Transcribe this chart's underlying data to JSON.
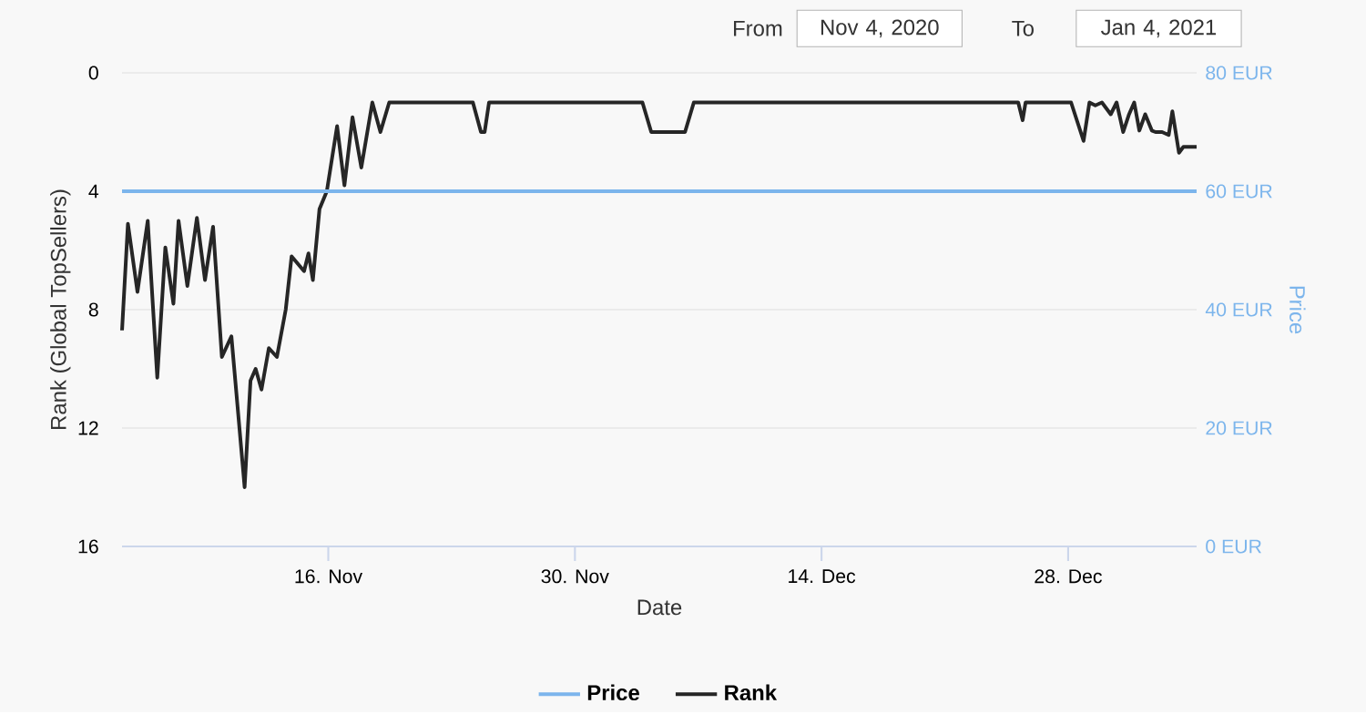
{
  "chart_data": {
    "type": "line",
    "xlabel": "Date",
    "ylabel": "Rank (Global TopSellers)",
    "y2label": "Price",
    "annotations": [
      "From",
      "Nov 4, 2020",
      "To",
      "Jan 4, 2021"
    ],
    "xlim": [
      "2020-11-04T07:00",
      "2021-01-04T07:00"
    ],
    "xticks": [
      {
        "value": "2020-11-16",
        "label": "16. Nov"
      },
      {
        "value": "2020-11-30",
        "label": "30. Nov"
      },
      {
        "value": "2020-12-14",
        "label": "14. Dec"
      },
      {
        "value": "2020-12-28",
        "label": "28. Dec"
      }
    ],
    "ylim": [
      16,
      0
    ],
    "yticks": [
      0,
      4,
      8,
      12,
      16
    ],
    "y2lim": [
      0,
      80
    ],
    "y2ticks": [
      {
        "value": 0,
        "label": "0 EUR"
      },
      {
        "value": 20,
        "label": "20 EUR"
      },
      {
        "value": 40,
        "label": "40 EUR"
      },
      {
        "value": 60,
        "label": "60 EUR"
      },
      {
        "value": 80,
        "label": "80 EUR"
      }
    ],
    "grid": "y",
    "legend": "bottom",
    "line_style": "solid",
    "series": [
      {
        "name": "Price",
        "color": "#7cb5ec",
        "axis": "y2",
        "x": [
          "2020-11-04T07:00",
          "2021-01-04T07:00"
        ],
        "values": [
          60,
          60
        ]
      },
      {
        "name": "Rank",
        "color": "#262626",
        "axis": "y",
        "x": [
          "2020-11-04T07:00",
          "2020-11-04T15:00",
          "2020-11-05T04:00",
          "2020-11-05T18:00",
          "2020-11-06T07:00",
          "2020-11-06T18:00",
          "2020-11-07T05:00",
          "2020-11-07T12:00",
          "2020-11-08T00:00",
          "2020-11-08T13:00",
          "2020-11-09T00:00",
          "2020-11-09T11:00",
          "2020-11-09T23:00",
          "2020-11-10T12:00",
          "2020-11-11T06:00",
          "2020-11-11T14:00",
          "2020-11-11T21:00",
          "2020-11-12T05:00",
          "2020-11-12T15:00",
          "2020-11-13T02:00",
          "2020-11-13T14:00",
          "2020-11-13T22:00",
          "2020-11-14T15:00",
          "2020-11-14T21:00",
          "2020-11-15T03:00",
          "2020-11-15T12:00",
          "2020-11-15T22:00",
          "2020-11-16T12:00",
          "2020-11-16T22:00",
          "2020-11-17T09:00",
          "2020-11-17T21:00",
          "2020-11-18T12:00",
          "2020-11-18T23:00",
          "2020-11-19T11:00",
          "2020-11-24T05:00",
          "2020-11-24T16:00",
          "2020-11-24T21:00",
          "2020-11-25T03:00",
          "2020-12-03T20:00",
          "2020-12-04T08:00",
          "2020-12-06T06:00",
          "2020-12-06T18:00",
          "2020-12-25T04:00",
          "2020-12-25T10:00",
          "2020-12-25T14:00",
          "2020-12-28T04:00",
          "2020-12-28T21:00",
          "2020-12-29T05:00",
          "2020-12-29T13:00",
          "2020-12-29T22:00",
          "2020-12-30T10:00",
          "2020-12-30T18:00",
          "2020-12-31T03:00",
          "2020-12-31T11:00",
          "2020-12-31T18:00",
          "2021-01-01T01:00",
          "2021-01-01T09:00",
          "2021-01-01T18:00",
          "2021-01-01T23:00",
          "2021-01-02T08:00",
          "2021-01-02T17:00",
          "2021-01-02T22:00",
          "2021-01-03T07:00",
          "2021-01-03T13:00",
          "2021-01-04T02:00",
          "2021-01-04T07:00"
        ],
        "values": [
          8.7,
          5.1,
          7.4,
          5.0,
          10.3,
          5.9,
          7.8,
          5.0,
          7.2,
          4.9,
          7.0,
          5.2,
          9.6,
          8.9,
          14.0,
          10.4,
          10.0,
          10.7,
          9.3,
          9.6,
          8.0,
          6.2,
          6.7,
          6.1,
          7.0,
          4.6,
          4.0,
          1.8,
          3.8,
          1.5,
          3.2,
          1.0,
          2.0,
          1.0,
          1.0,
          2.0,
          2.0,
          1.0,
          1.0,
          2.0,
          2.0,
          1.0,
          1.0,
          1.6,
          1.0,
          1.0,
          2.3,
          1.0,
          1.1,
          1.0,
          1.4,
          1.0,
          2.0,
          1.4,
          1.0,
          1.95,
          1.4,
          1.95,
          2.0,
          2.0,
          2.1,
          1.3,
          2.7,
          2.5,
          2.5,
          2.5
        ]
      }
    ]
  }
}
